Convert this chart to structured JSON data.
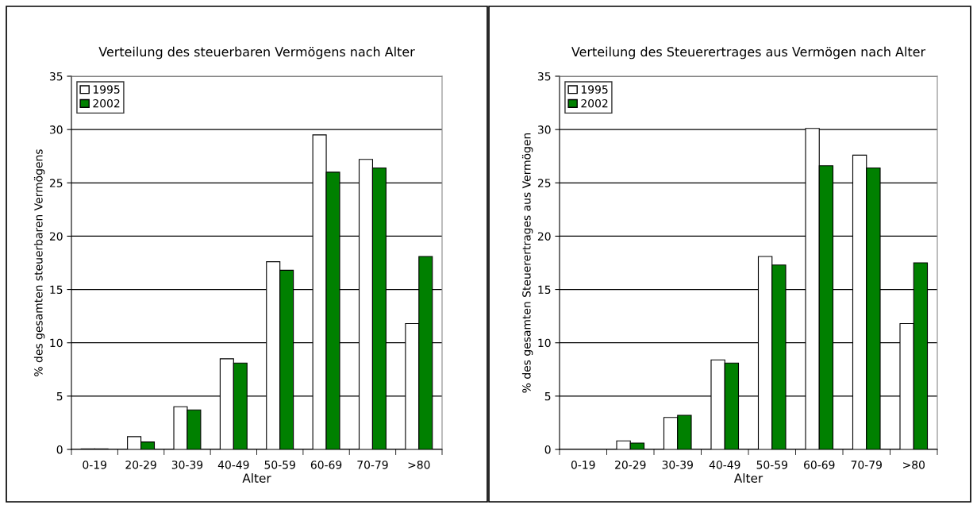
{
  "chart_data": [
    {
      "type": "bar",
      "title": "Verteilung des steuerbaren Vermögens nach Alter",
      "xlabel": "Alter",
      "ylabel": "% des gesamten steuerbaren Vermögens",
      "categories": [
        "0-19",
        "20-29",
        "30-39",
        "40-49",
        "50-59",
        "60-69",
        "70-79",
        ">80"
      ],
      "series": [
        {
          "name": "1995",
          "color": "#ffffff",
          "values": [
            0.05,
            1.2,
            4.0,
            8.5,
            17.6,
            29.5,
            27.2,
            11.8
          ]
        },
        {
          "name": "2002",
          "color": "#008000",
          "values": [
            0.05,
            0.7,
            3.7,
            8.1,
            16.8,
            26.0,
            26.4,
            18.1
          ]
        }
      ],
      "ylim": [
        0,
        35
      ],
      "yticks": [
        0,
        5,
        10,
        15,
        20,
        25,
        30,
        35
      ],
      "grid": "y",
      "legend": "top left"
    },
    {
      "type": "bar",
      "title": "Verteilung des Steuerertrages aus Vermögen nach Alter",
      "xlabel": "Alter",
      "ylabel": "% des gesamten Steuerertrages aus Vermögen",
      "categories": [
        "0-19",
        "20-29",
        "30-39",
        "40-49",
        "50-59",
        "60-69",
        "70-79",
        ">80"
      ],
      "series": [
        {
          "name": "1995",
          "color": "#ffffff",
          "values": [
            0,
            0.8,
            3.0,
            8.4,
            18.1,
            30.1,
            27.6,
            11.8
          ]
        },
        {
          "name": "2002",
          "color": "#008000",
          "values": [
            0,
            0.6,
            3.2,
            8.1,
            17.3,
            26.6,
            26.4,
            17.5
          ]
        }
      ],
      "ylim": [
        0,
        35
      ],
      "yticks": [
        0,
        5,
        10,
        15,
        20,
        25,
        30,
        35
      ],
      "grid": "y",
      "legend": "top left"
    }
  ]
}
